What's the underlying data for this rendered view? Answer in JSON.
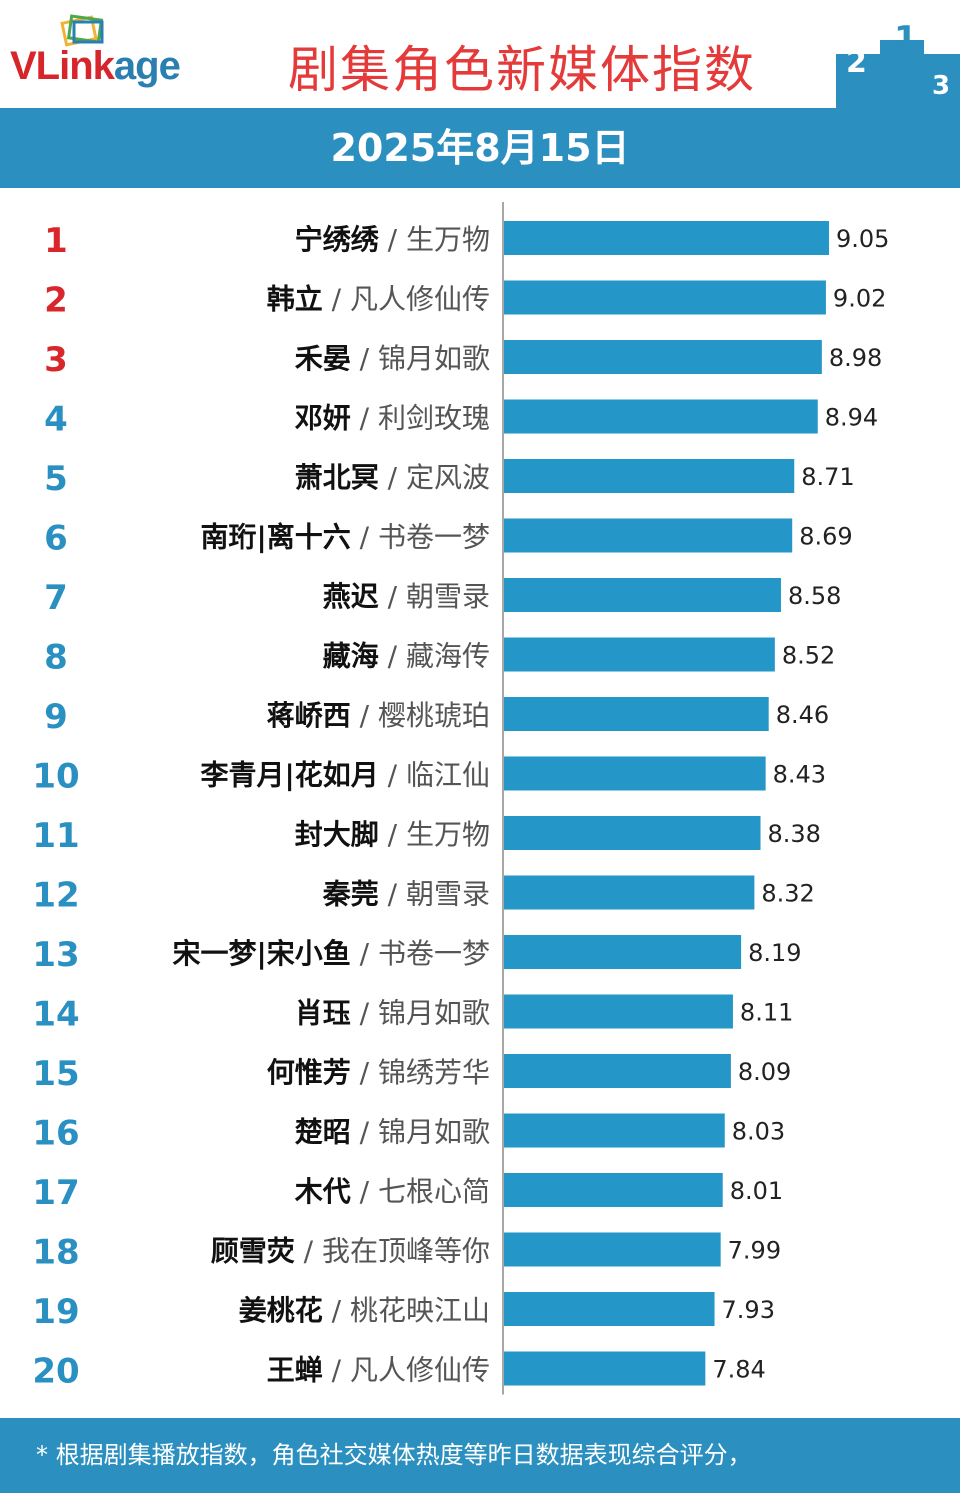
{
  "header": {
    "logo_text": "VLink",
    "logo_text_tail": "age",
    "title": "剧集角色新媒体指数"
  },
  "date": "2025年8月15日",
  "footer": {
    "note": "* 根据剧集播放指数，角色社交媒体热度等昨日数据表现综合评分，"
  },
  "colors": {
    "bar": "#2496c7",
    "top_rank": "#d9262b",
    "rank": "#2a90c2",
    "band": "#2b8fbf",
    "title": "#e53a3a"
  },
  "chart_data": {
    "type": "bar",
    "orientation": "horizontal",
    "title": "剧集角色新媒体指数",
    "xlabel": "",
    "ylabel": "",
    "xlim": [
      5.87,
      9.05
    ],
    "grid": false,
    "legend": "none",
    "categories": [
      "宁绣绣",
      "韩立",
      "禾晏",
      "邓妍",
      "萧北冥",
      "南珩|离十六",
      "燕迟",
      "藏海",
      "蒋峤西",
      "李青月|花如月",
      "封大脚",
      "秦莞",
      "宋一梦|宋小鱼",
      "肖珏",
      "何惟芳",
      "楚昭",
      "木代",
      "顾雪荧",
      "姜桃花",
      "王蝉"
    ],
    "dramas": [
      "生万物",
      "凡人修仙传",
      "锦月如歌",
      "利剑玫瑰",
      "定风波",
      "书卷一梦",
      "朝雪录",
      "藏海传",
      "樱桃琥珀",
      "临江仙",
      "生万物",
      "朝雪录",
      "书卷一梦",
      "锦月如歌",
      "锦绣芳华",
      "锦月如歌",
      "七根心简",
      "我在顶峰等你",
      "桃花映江山",
      "凡人修仙传"
    ],
    "ranks": [
      "1",
      "2",
      "3",
      "4",
      "5",
      "6",
      "7",
      "8",
      "9",
      "10",
      "11",
      "12",
      "13",
      "14",
      "15",
      "16",
      "17",
      "18",
      "19",
      "20"
    ],
    "values": [
      9.05,
      9.02,
      8.98,
      8.94,
      8.71,
      8.69,
      8.58,
      8.52,
      8.46,
      8.43,
      8.38,
      8.32,
      8.19,
      8.11,
      8.09,
      8.03,
      8.01,
      7.99,
      7.93,
      7.84
    ],
    "value_labels": [
      "9.05",
      "9.02",
      "8.98",
      "8.94",
      "8.71",
      "8.69",
      "8.58",
      "8.52",
      "8.46",
      "8.43",
      "8.38",
      "8.32",
      "8.19",
      "8.11",
      "8.09",
      "8.03",
      "8.01",
      "7.99",
      "7.93",
      "7.84"
    ]
  }
}
